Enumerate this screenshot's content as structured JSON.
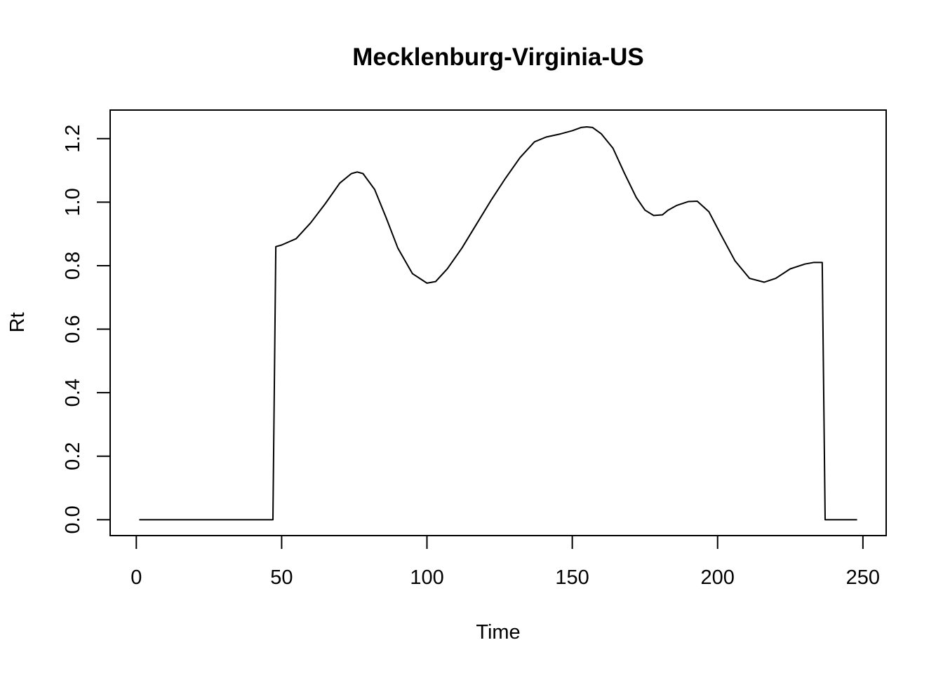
{
  "chart_data": {
    "type": "line",
    "title": "Mecklenburg-Virginia-US",
    "xlabel": "Time",
    "ylabel": "Rt",
    "xlim": [
      -9,
      258
    ],
    "ylim": [
      -0.05,
      1.29
    ],
    "x_ticks": [
      0,
      50,
      100,
      150,
      200,
      250
    ],
    "x_tick_labels": [
      "0",
      "50",
      "100",
      "150",
      "200",
      "250"
    ],
    "y_ticks": [
      0.0,
      0.2,
      0.4,
      0.6,
      0.8,
      1.0,
      1.2
    ],
    "y_tick_labels": [
      "0.0",
      "0.2",
      "0.4",
      "0.6",
      "0.8",
      "1.0",
      "1.2"
    ],
    "grid": false,
    "legend": "none",
    "line_color": "#000000",
    "series": [
      {
        "x": [
          1,
          10,
          20,
          30,
          40,
          47,
          48,
          50,
          55,
          60,
          65,
          70,
          74,
          76,
          78,
          82,
          86,
          90,
          95,
          100,
          103,
          107,
          112,
          117,
          122,
          127,
          132,
          137,
          141,
          146,
          150,
          153,
          155,
          157,
          160,
          164,
          168,
          172,
          175,
          178,
          181,
          183,
          186,
          190,
          193,
          197,
          201,
          206,
          211,
          216,
          220,
          225,
          230,
          233,
          236,
          237,
          240,
          245,
          248
        ],
        "y": [
          0.0,
          0.0,
          0.0,
          0.0,
          0.0,
          0.0,
          0.86,
          0.865,
          0.885,
          0.935,
          0.995,
          1.06,
          1.09,
          1.095,
          1.09,
          1.04,
          0.95,
          0.855,
          0.775,
          0.745,
          0.75,
          0.79,
          0.855,
          0.93,
          1.005,
          1.075,
          1.14,
          1.19,
          1.205,
          1.215,
          1.225,
          1.235,
          1.237,
          1.235,
          1.215,
          1.17,
          1.09,
          1.015,
          0.975,
          0.958,
          0.96,
          0.975,
          0.99,
          1.002,
          1.003,
          0.97,
          0.9,
          0.815,
          0.76,
          0.748,
          0.76,
          0.79,
          0.805,
          0.81,
          0.81,
          0.0,
          0.0,
          0.0,
          0.0
        ]
      }
    ]
  }
}
